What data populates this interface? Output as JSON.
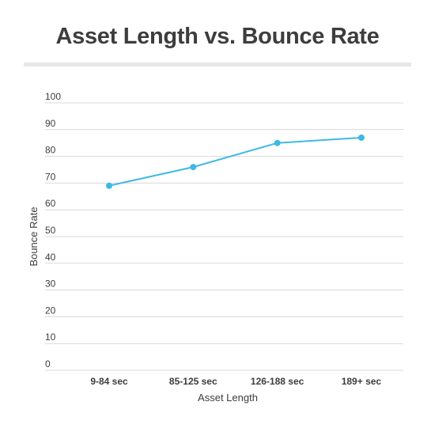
{
  "chart_data": {
    "type": "line",
    "title": "Asset Length vs. Bounce Rate",
    "xlabel": "Asset Length",
    "ylabel": "Bounce Rate",
    "categories": [
      "9-84 sec",
      "85-125 sec",
      "126-188 sec",
      "189+ sec"
    ],
    "series": [
      {
        "values": [
          69,
          76,
          85,
          87
        ]
      }
    ],
    "ylim": [
      0,
      100
    ],
    "yticks": [
      0,
      10,
      20,
      30,
      40,
      50,
      60,
      70,
      80,
      90,
      100
    ],
    "grid": true,
    "line_color": "#3fb8e3",
    "grid_color": "#d9d9d9"
  }
}
